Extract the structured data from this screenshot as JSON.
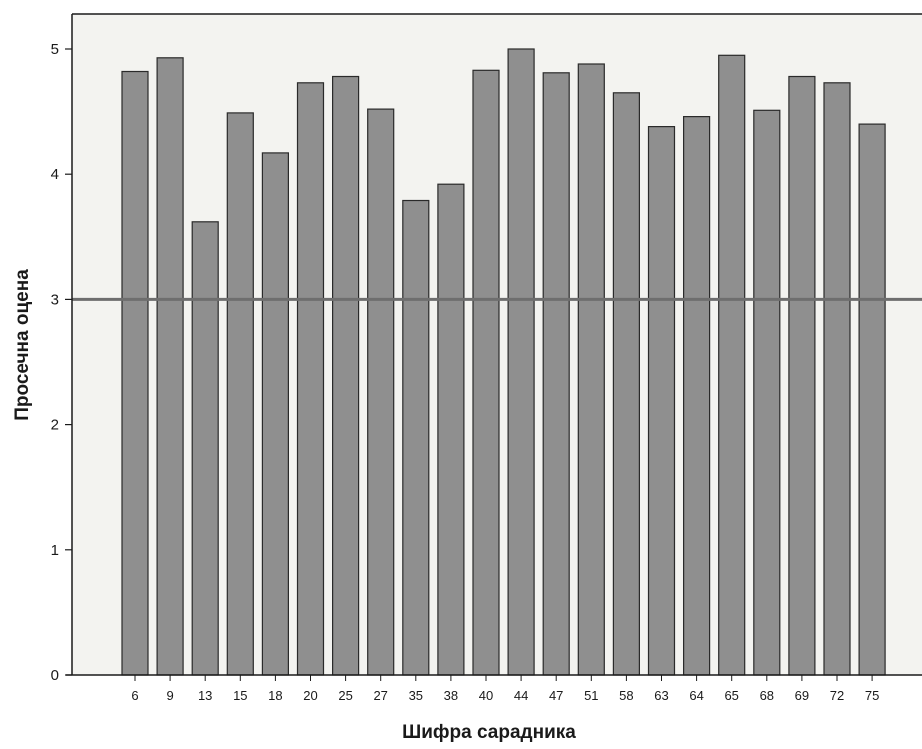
{
  "chart_data": {
    "type": "bar",
    "xlabel": "Шифра сарадника",
    "ylabel": "Просечна оцена",
    "categories": [
      "6",
      "9",
      "13",
      "15",
      "18",
      "20",
      "25",
      "27",
      "35",
      "38",
      "40",
      "44",
      "47",
      "51",
      "58",
      "63",
      "64",
      "65",
      "68",
      "69",
      "72",
      "75"
    ],
    "series": [
      {
        "values": [
          4.82,
          4.93,
          3.62,
          4.49,
          4.17,
          4.73,
          4.78,
          4.52,
          3.79,
          3.92,
          4.83,
          5.0,
          4.81,
          4.88,
          4.65,
          4.38,
          4.46,
          4.95,
          4.51,
          4.78,
          4.73,
          4.4
        ]
      }
    ],
    "yticks": [
      "0",
      "1",
      "2",
      "3",
      "4",
      "5"
    ],
    "ylim": [
      0,
      5.3
    ],
    "reference_line": {
      "y": 3
    },
    "grid": false,
    "legend": "none",
    "colors": {
      "bar_fill": "#8f8f8f",
      "bar_stroke": "#2a2a2a",
      "plot_background": "#f3f3f0",
      "reference_line": "#6e6e6e",
      "axis": "#1a1a1a"
    }
  }
}
